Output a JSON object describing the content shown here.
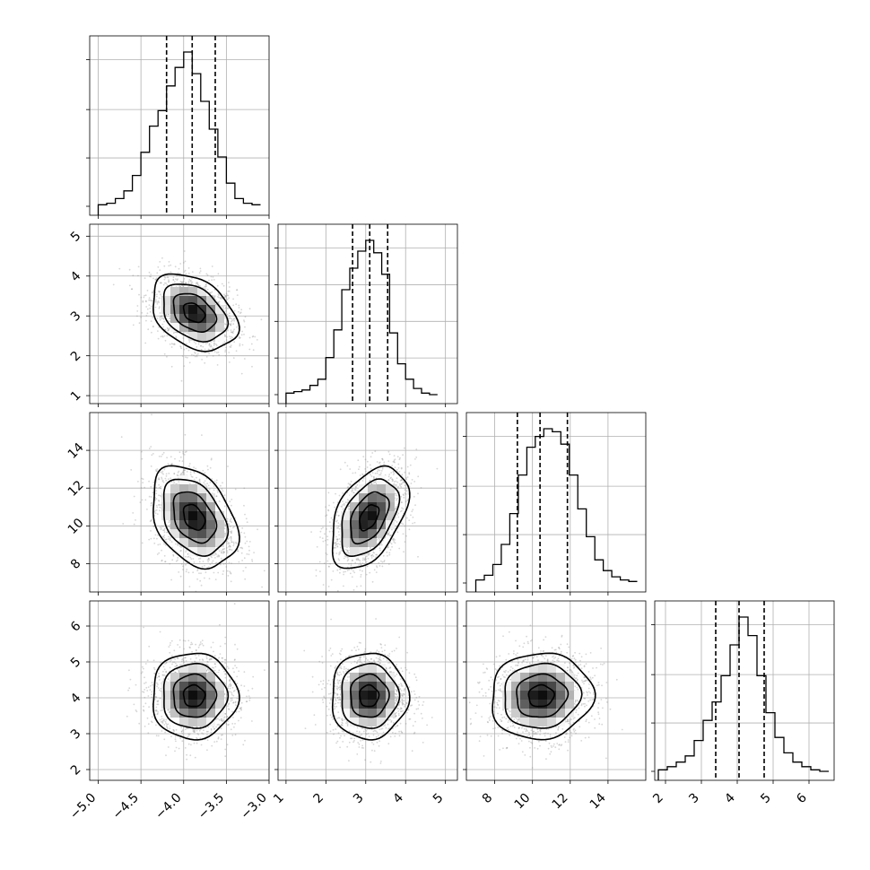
{
  "chart_data": {
    "type": "corner",
    "parameters": 4,
    "grid": true,
    "panel_ranges": [
      [
        -5.1,
        -3.0
      ],
      [
        0.8,
        5.3
      ],
      [
        6.5,
        16.0
      ],
      [
        1.7,
        6.7
      ]
    ],
    "tick_labels": {
      "x": [
        [
          "−5.0",
          "−4.5",
          "−4.0",
          "−3.5",
          "−3.0"
        ],
        [
          "1",
          "2",
          "3",
          "4",
          "5"
        ],
        [
          "8",
          "10",
          "12",
          "14"
        ],
        [
          "2",
          "3",
          "4",
          "5",
          "6"
        ]
      ],
      "y": [
        [],
        [
          "1",
          "2",
          "3",
          "4",
          "5"
        ],
        [
          "8",
          "10",
          "12",
          "14"
        ],
        [
          "2",
          "3",
          "4",
          "5",
          "6"
        ]
      ]
    },
    "ticks": {
      "x": [
        [
          -5.0,
          -4.5,
          -4.0,
          -3.5,
          -3.0
        ],
        [
          1,
          2,
          3,
          4,
          5
        ],
        [
          8,
          10,
          12,
          14
        ],
        [
          2,
          3,
          4,
          5,
          6
        ]
      ],
      "y": [
        [],
        [
          1,
          2,
          3,
          4,
          5
        ],
        [
          8,
          10,
          12,
          14
        ],
        [
          2,
          3,
          4,
          5,
          6
        ]
      ]
    },
    "diag_hist_yticks": [
      [
        0.0,
        0.33,
        0.66,
        1.0
      ],
      [
        0.0,
        0.25,
        0.5,
        0.75,
        1.0
      ],
      [
        0.0,
        0.33,
        0.66,
        1.0
      ],
      [
        0.0,
        0.33,
        0.66,
        1.0
      ]
    ],
    "quantiles": [
      [
        -4.2,
        -3.9,
        -3.63
      ],
      [
        2.67,
        3.1,
        3.55
      ],
      [
        9.2,
        10.4,
        11.85
      ],
      [
        3.4,
        4.05,
        4.75
      ]
    ],
    "histograms": [
      {
        "bin_edges": [
          -5.0,
          -4.9,
          -4.8,
          -4.7,
          -4.6,
          -4.5,
          -4.4,
          -4.3,
          -4.2,
          -4.1,
          -4.0,
          -3.9,
          -3.8,
          -3.7,
          -3.6,
          -3.5,
          -3.4,
          -3.3,
          -3.2,
          -3.1
        ],
        "counts": [
          1,
          2,
          5,
          10,
          20,
          35,
          52,
          62,
          78,
          90,
          100,
          86,
          68,
          50,
          32,
          15,
          5,
          2,
          1
        ]
      },
      {
        "bin_edges": [
          1.0,
          1.2,
          1.4,
          1.6,
          1.8,
          2.0,
          2.2,
          2.4,
          2.6,
          2.8,
          3.0,
          3.2,
          3.4,
          3.6,
          3.8,
          4.0,
          4.2,
          4.4,
          4.6,
          4.8
        ],
        "counts": [
          1,
          2,
          3,
          6,
          10,
          24,
          42,
          68,
          82,
          93,
          100,
          92,
          78,
          40,
          20,
          10,
          4,
          1,
          0
        ]
      },
      {
        "bin_edges": [
          7.0,
          7.45,
          7.9,
          8.35,
          8.8,
          9.25,
          9.7,
          10.15,
          10.6,
          11.05,
          11.5,
          11.95,
          12.4,
          12.85,
          13.3,
          13.75,
          14.2,
          14.65,
          15.1,
          15.55
        ],
        "counts": [
          2,
          5,
          12,
          25,
          45,
          70,
          88,
          95,
          100,
          98,
          90,
          70,
          48,
          30,
          15,
          8,
          4,
          2,
          1
        ]
      },
      {
        "bin_edges": [
          1.8,
          2.05,
          2.3,
          2.55,
          2.8,
          3.05,
          3.3,
          3.55,
          3.8,
          4.05,
          4.3,
          4.55,
          4.8,
          5.05,
          5.3,
          5.55,
          5.8,
          6.05,
          6.3,
          6.55
        ],
        "counts": [
          1,
          3,
          6,
          10,
          20,
          33,
          45,
          62,
          82,
          100,
          88,
          62,
          38,
          22,
          12,
          6,
          3,
          1,
          0
        ]
      }
    ],
    "pairs": [
      {
        "row": 1,
        "col": 0,
        "center": [
          -3.88,
          3.08
        ],
        "sigma": [
          0.25,
          0.48
        ],
        "rho": -0.35
      },
      {
        "row": 2,
        "col": 0,
        "center": [
          -3.88,
          10.45
        ],
        "sigma": [
          0.25,
          1.35
        ],
        "rho": -0.35
      },
      {
        "row": 2,
        "col": 1,
        "center": [
          3.08,
          10.45
        ],
        "sigma": [
          0.48,
          1.35
        ],
        "rho": 0.45
      },
      {
        "row": 3,
        "col": 0,
        "center": [
          -3.88,
          4.05
        ],
        "sigma": [
          0.25,
          0.6
        ],
        "rho": 0.0
      },
      {
        "row": 3,
        "col": 1,
        "center": [
          3.08,
          4.05
        ],
        "sigma": [
          0.48,
          0.6
        ],
        "rho": 0.0
      },
      {
        "row": 3,
        "col": 2,
        "center": [
          10.45,
          4.05
        ],
        "sigma": [
          1.35,
          0.6
        ],
        "rho": 0.05
      }
    ],
    "colors": {
      "line": "#000000",
      "grid": "#b0b0b0",
      "scatter": "#8a8a8a",
      "density_light": "#ffffff",
      "density_dark": "#000000"
    }
  }
}
